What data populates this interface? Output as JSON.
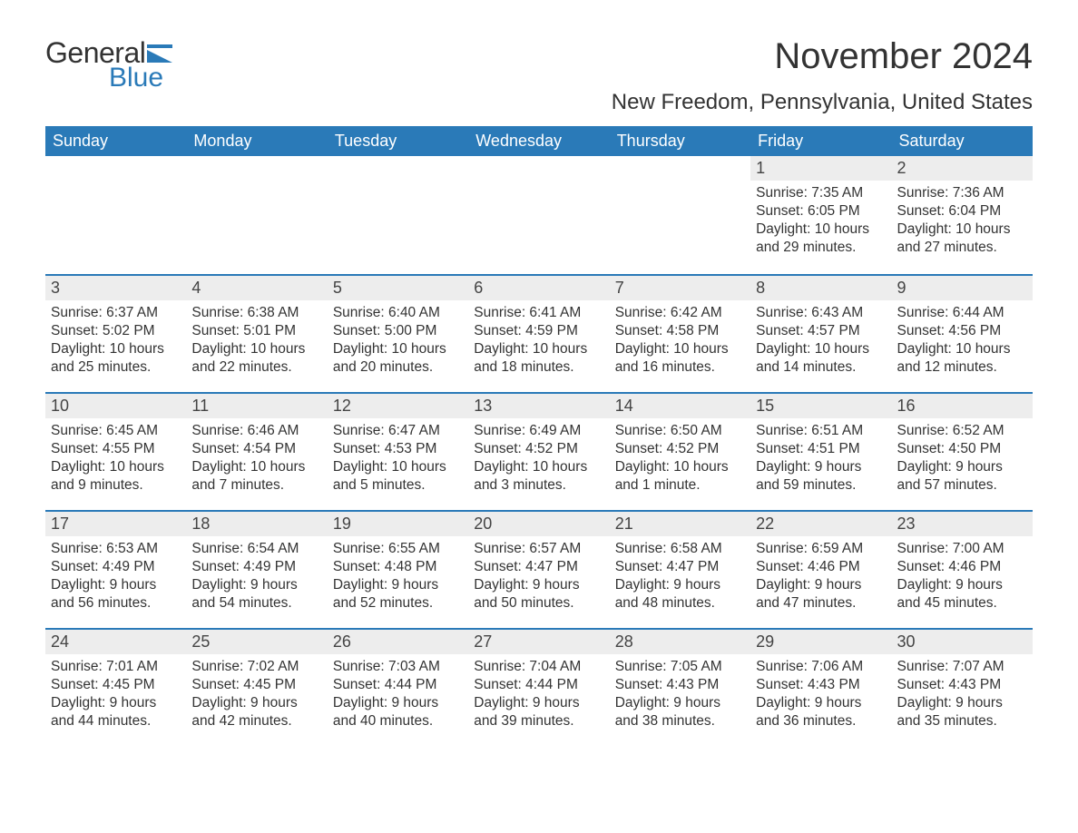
{
  "logo": {
    "word1": "General",
    "word2": "Blue",
    "flag_color": "#2a7ab8"
  },
  "title": {
    "month_year": "November 2024",
    "location": "New Freedom, Pennsylvania, United States"
  },
  "colors": {
    "header_bg": "#2a7ab8",
    "header_text": "#ffffff",
    "daynum_bg": "#ededed",
    "text": "#333333",
    "rule": "#2a7ab8"
  },
  "typography": {
    "title_fontsize": 40,
    "location_fontsize": 24,
    "weekday_fontsize": 18,
    "daynum_fontsize": 18,
    "body_fontsize": 15.5
  },
  "weekdays": [
    "Sunday",
    "Monday",
    "Tuesday",
    "Wednesday",
    "Thursday",
    "Friday",
    "Saturday"
  ],
  "weeks": [
    [
      null,
      null,
      null,
      null,
      null,
      {
        "n": "1",
        "sunrise": "Sunrise: 7:35 AM",
        "sunset": "Sunset: 6:05 PM",
        "d1": "Daylight: 10 hours",
        "d2": "and 29 minutes."
      },
      {
        "n": "2",
        "sunrise": "Sunrise: 7:36 AM",
        "sunset": "Sunset: 6:04 PM",
        "d1": "Daylight: 10 hours",
        "d2": "and 27 minutes."
      }
    ],
    [
      {
        "n": "3",
        "sunrise": "Sunrise: 6:37 AM",
        "sunset": "Sunset: 5:02 PM",
        "d1": "Daylight: 10 hours",
        "d2": "and 25 minutes."
      },
      {
        "n": "4",
        "sunrise": "Sunrise: 6:38 AM",
        "sunset": "Sunset: 5:01 PM",
        "d1": "Daylight: 10 hours",
        "d2": "and 22 minutes."
      },
      {
        "n": "5",
        "sunrise": "Sunrise: 6:40 AM",
        "sunset": "Sunset: 5:00 PM",
        "d1": "Daylight: 10 hours",
        "d2": "and 20 minutes."
      },
      {
        "n": "6",
        "sunrise": "Sunrise: 6:41 AM",
        "sunset": "Sunset: 4:59 PM",
        "d1": "Daylight: 10 hours",
        "d2": "and 18 minutes."
      },
      {
        "n": "7",
        "sunrise": "Sunrise: 6:42 AM",
        "sunset": "Sunset: 4:58 PM",
        "d1": "Daylight: 10 hours",
        "d2": "and 16 minutes."
      },
      {
        "n": "8",
        "sunrise": "Sunrise: 6:43 AM",
        "sunset": "Sunset: 4:57 PM",
        "d1": "Daylight: 10 hours",
        "d2": "and 14 minutes."
      },
      {
        "n": "9",
        "sunrise": "Sunrise: 6:44 AM",
        "sunset": "Sunset: 4:56 PM",
        "d1": "Daylight: 10 hours",
        "d2": "and 12 minutes."
      }
    ],
    [
      {
        "n": "10",
        "sunrise": "Sunrise: 6:45 AM",
        "sunset": "Sunset: 4:55 PM",
        "d1": "Daylight: 10 hours",
        "d2": "and 9 minutes."
      },
      {
        "n": "11",
        "sunrise": "Sunrise: 6:46 AM",
        "sunset": "Sunset: 4:54 PM",
        "d1": "Daylight: 10 hours",
        "d2": "and 7 minutes."
      },
      {
        "n": "12",
        "sunrise": "Sunrise: 6:47 AM",
        "sunset": "Sunset: 4:53 PM",
        "d1": "Daylight: 10 hours",
        "d2": "and 5 minutes."
      },
      {
        "n": "13",
        "sunrise": "Sunrise: 6:49 AM",
        "sunset": "Sunset: 4:52 PM",
        "d1": "Daylight: 10 hours",
        "d2": "and 3 minutes."
      },
      {
        "n": "14",
        "sunrise": "Sunrise: 6:50 AM",
        "sunset": "Sunset: 4:52 PM",
        "d1": "Daylight: 10 hours",
        "d2": "and 1 minute."
      },
      {
        "n": "15",
        "sunrise": "Sunrise: 6:51 AM",
        "sunset": "Sunset: 4:51 PM",
        "d1": "Daylight: 9 hours",
        "d2": "and 59 minutes."
      },
      {
        "n": "16",
        "sunrise": "Sunrise: 6:52 AM",
        "sunset": "Sunset: 4:50 PM",
        "d1": "Daylight: 9 hours",
        "d2": "and 57 minutes."
      }
    ],
    [
      {
        "n": "17",
        "sunrise": "Sunrise: 6:53 AM",
        "sunset": "Sunset: 4:49 PM",
        "d1": "Daylight: 9 hours",
        "d2": "and 56 minutes."
      },
      {
        "n": "18",
        "sunrise": "Sunrise: 6:54 AM",
        "sunset": "Sunset: 4:49 PM",
        "d1": "Daylight: 9 hours",
        "d2": "and 54 minutes."
      },
      {
        "n": "19",
        "sunrise": "Sunrise: 6:55 AM",
        "sunset": "Sunset: 4:48 PM",
        "d1": "Daylight: 9 hours",
        "d2": "and 52 minutes."
      },
      {
        "n": "20",
        "sunrise": "Sunrise: 6:57 AM",
        "sunset": "Sunset: 4:47 PM",
        "d1": "Daylight: 9 hours",
        "d2": "and 50 minutes."
      },
      {
        "n": "21",
        "sunrise": "Sunrise: 6:58 AM",
        "sunset": "Sunset: 4:47 PM",
        "d1": "Daylight: 9 hours",
        "d2": "and 48 minutes."
      },
      {
        "n": "22",
        "sunrise": "Sunrise: 6:59 AM",
        "sunset": "Sunset: 4:46 PM",
        "d1": "Daylight: 9 hours",
        "d2": "and 47 minutes."
      },
      {
        "n": "23",
        "sunrise": "Sunrise: 7:00 AM",
        "sunset": "Sunset: 4:46 PM",
        "d1": "Daylight: 9 hours",
        "d2": "and 45 minutes."
      }
    ],
    [
      {
        "n": "24",
        "sunrise": "Sunrise: 7:01 AM",
        "sunset": "Sunset: 4:45 PM",
        "d1": "Daylight: 9 hours",
        "d2": "and 44 minutes."
      },
      {
        "n": "25",
        "sunrise": "Sunrise: 7:02 AM",
        "sunset": "Sunset: 4:45 PM",
        "d1": "Daylight: 9 hours",
        "d2": "and 42 minutes."
      },
      {
        "n": "26",
        "sunrise": "Sunrise: 7:03 AM",
        "sunset": "Sunset: 4:44 PM",
        "d1": "Daylight: 9 hours",
        "d2": "and 40 minutes."
      },
      {
        "n": "27",
        "sunrise": "Sunrise: 7:04 AM",
        "sunset": "Sunset: 4:44 PM",
        "d1": "Daylight: 9 hours",
        "d2": "and 39 minutes."
      },
      {
        "n": "28",
        "sunrise": "Sunrise: 7:05 AM",
        "sunset": "Sunset: 4:43 PM",
        "d1": "Daylight: 9 hours",
        "d2": "and 38 minutes."
      },
      {
        "n": "29",
        "sunrise": "Sunrise: 7:06 AM",
        "sunset": "Sunset: 4:43 PM",
        "d1": "Daylight: 9 hours",
        "d2": "and 36 minutes."
      },
      {
        "n": "30",
        "sunrise": "Sunrise: 7:07 AM",
        "sunset": "Sunset: 4:43 PM",
        "d1": "Daylight: 9 hours",
        "d2": "and 35 minutes."
      }
    ]
  ]
}
